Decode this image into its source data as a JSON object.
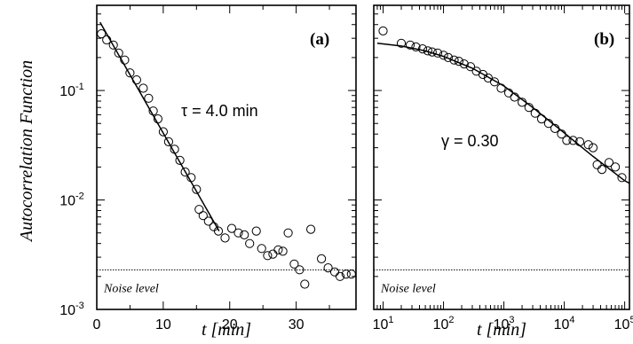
{
  "ylabel": "Autocorrelation Function",
  "chart_data": [
    {
      "type": "scatter",
      "panel_label": "(a)",
      "xlabel": "t [min]",
      "ylabel": "Autocorrelation Function",
      "xscale": "linear",
      "yscale": "log",
      "xlim": [
        0,
        39
      ],
      "ylim": [
        0.001,
        0.6
      ],
      "x_ticks": [
        0,
        10,
        20,
        30
      ],
      "x_tick_labels": [
        "0",
        "10",
        "20",
        "30"
      ],
      "y_ticks": [
        0.001,
        0.01,
        0.1
      ],
      "y_tick_bases": [
        "10",
        "10",
        "10"
      ],
      "y_tick_exps": [
        "-3",
        "-2",
        "-1"
      ],
      "annotation": "τ = 4.0 min",
      "noise_label": "Noise level",
      "noise_level": 0.0023,
      "points": [
        [
          0.7,
          0.33
        ],
        [
          1.5,
          0.29
        ],
        [
          2.5,
          0.26
        ],
        [
          3.3,
          0.22
        ],
        [
          4.2,
          0.19
        ],
        [
          5.0,
          0.145
        ],
        [
          6.0,
          0.125
        ],
        [
          7.0,
          0.105
        ],
        [
          7.8,
          0.085
        ],
        [
          8.5,
          0.065
        ],
        [
          9.2,
          0.055
        ],
        [
          10.0,
          0.042
        ],
        [
          10.8,
          0.034
        ],
        [
          11.7,
          0.029
        ],
        [
          12.5,
          0.023
        ],
        [
          13.3,
          0.018
        ],
        [
          14.2,
          0.016
        ],
        [
          15.0,
          0.0125
        ],
        [
          15.4,
          0.0082
        ],
        [
          16.0,
          0.0072
        ],
        [
          16.8,
          0.0064
        ],
        [
          17.6,
          0.0057
        ],
        [
          18.3,
          0.0052
        ],
        [
          19.3,
          0.0045
        ],
        [
          20.3,
          0.0055
        ],
        [
          21.3,
          0.005
        ],
        [
          22.2,
          0.0048
        ],
        [
          23.0,
          0.004
        ],
        [
          24.0,
          0.0052
        ],
        [
          24.8,
          0.0036
        ],
        [
          25.7,
          0.0031
        ],
        [
          26.5,
          0.0032
        ],
        [
          27.3,
          0.0035
        ],
        [
          28.0,
          0.0034
        ],
        [
          28.8,
          0.005
        ],
        [
          29.7,
          0.0026
        ],
        [
          30.5,
          0.0023
        ],
        [
          31.3,
          0.0017
        ],
        [
          32.2,
          0.0054
        ],
        [
          33.8,
          0.0029
        ],
        [
          34.8,
          0.0024
        ],
        [
          35.8,
          0.0022
        ],
        [
          36.6,
          0.002
        ],
        [
          37.5,
          0.0021
        ],
        [
          38.3,
          0.0021
        ]
      ],
      "fit": [
        [
          0.5,
          0.42
        ],
        [
          18.4,
          0.0052
        ]
      ]
    },
    {
      "type": "scatter",
      "panel_label": "(b)",
      "xlabel": "t [min]",
      "xscale": "log",
      "yscale": "log",
      "xlim": [
        7,
        120000
      ],
      "ylim": [
        0.001,
        0.6
      ],
      "x_ticks": [
        10,
        100,
        1000,
        10000,
        100000
      ],
      "x_tick_bases": [
        "10",
        "10",
        "10",
        "10",
        "10"
      ],
      "x_tick_exps": [
        "1",
        "2",
        "3",
        "4",
        "5"
      ],
      "y_ticks": [
        0.001,
        0.01,
        0.1
      ],
      "annotation": "γ = 0.30",
      "noise_label": "Noise level",
      "noise_level": 0.0023,
      "points": [
        [
          10,
          0.35
        ],
        [
          20,
          0.27
        ],
        [
          28,
          0.26
        ],
        [
          35,
          0.25
        ],
        [
          45,
          0.24
        ],
        [
          55,
          0.23
        ],
        [
          65,
          0.225
        ],
        [
          80,
          0.22
        ],
        [
          100,
          0.21
        ],
        [
          120,
          0.2
        ],
        [
          150,
          0.19
        ],
        [
          180,
          0.185
        ],
        [
          220,
          0.175
        ],
        [
          280,
          0.165
        ],
        [
          350,
          0.15
        ],
        [
          450,
          0.14
        ],
        [
          550,
          0.13
        ],
        [
          700,
          0.12
        ],
        [
          900,
          0.105
        ],
        [
          1200,
          0.095
        ],
        [
          1500,
          0.087
        ],
        [
          2000,
          0.078
        ],
        [
          2600,
          0.07
        ],
        [
          3300,
          0.062
        ],
        [
          4200,
          0.055
        ],
        [
          5500,
          0.05
        ],
        [
          7000,
          0.045
        ],
        [
          9000,
          0.04
        ],
        [
          11000,
          0.035
        ],
        [
          14000,
          0.035
        ],
        [
          18000,
          0.034
        ],
        [
          25000,
          0.032
        ],
        [
          30000,
          0.03
        ],
        [
          35000,
          0.021
        ],
        [
          42000,
          0.019
        ],
        [
          55000,
          0.022
        ],
        [
          70000,
          0.02
        ],
        [
          90000,
          0.016
        ]
      ],
      "fit_curve": [
        [
          8,
          0.27
        ],
        [
          20,
          0.255
        ],
        [
          50,
          0.23
        ],
        [
          100,
          0.205
        ],
        [
          300,
          0.16
        ],
        [
          1000,
          0.11
        ],
        [
          3000,
          0.07
        ],
        [
          10000,
          0.041
        ],
        [
          30000,
          0.025
        ],
        [
          100000,
          0.015
        ],
        [
          120000,
          0.0142
        ]
      ]
    }
  ]
}
